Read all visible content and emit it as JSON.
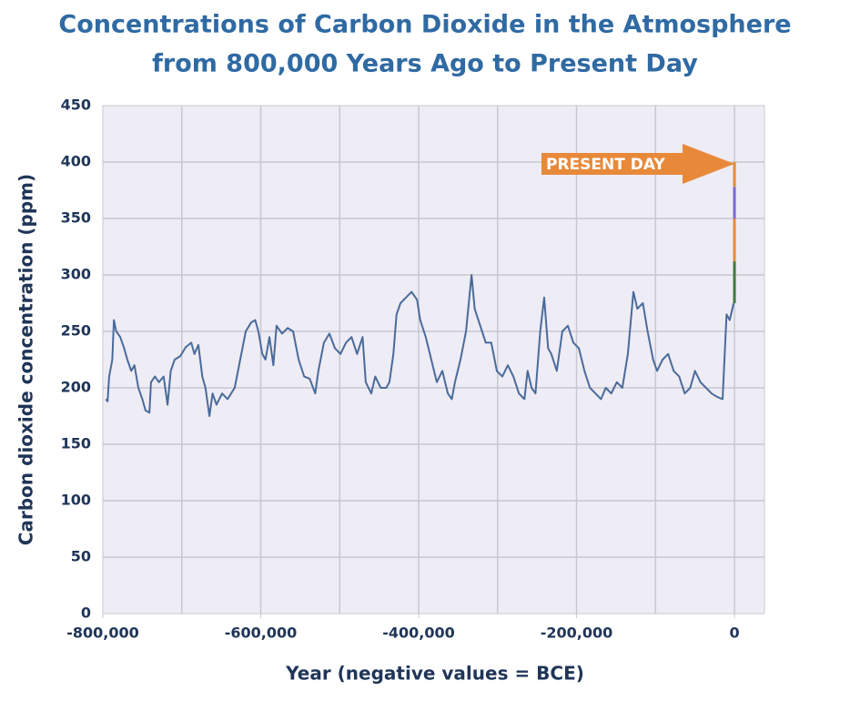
{
  "chart_data": {
    "type": "line",
    "title": [
      "Concentrations of Carbon Dioxide in the Atmosphere",
      "from 800,000 Years Ago to Present Day"
    ],
    "xlabel": "Year (negative values = BCE)",
    "ylabel": "Carbon dioxide concentration (ppm)",
    "annotation": "PRESENT DAY",
    "xlim": [
      -800000,
      38000
    ],
    "ylim": [
      0,
      450
    ],
    "xticks": [
      {
        "value": -800000,
        "label": "-800,000"
      },
      {
        "value": -600000,
        "label": "-600,000"
      },
      {
        "value": -400000,
        "label": "-400,000"
      },
      {
        "value": -200000,
        "label": "-200,000"
      },
      0
    ],
    "xgrid": [
      -700000,
      -600000,
      -500000,
      -400000,
      -300000,
      -200000,
      -100000,
      0
    ],
    "yticks": [
      0,
      50,
      100,
      150,
      200,
      250,
      300,
      350,
      400,
      450
    ],
    "grid": true,
    "series": [
      {
        "color": "#4a6b9a",
        "x": [
          -796000,
          -794000,
          -792000,
          -788000,
          -786000,
          -783000,
          -778000,
          -773000,
          -769000,
          -764000,
          -760000,
          -755000,
          -750000,
          -746000,
          -741000,
          -739000,
          -734000,
          -729000,
          -723000,
          -718000,
          -714000,
          -709000,
          -702000,
          -695000,
          -688000,
          -684000,
          -679000,
          -674000,
          -670000,
          -665000,
          -661000,
          -656000,
          -649000,
          -642000,
          -633000,
          -626000,
          -619000,
          -612000,
          -607000,
          -603000,
          -598000,
          -594000,
          -589000,
          -584000,
          -580000,
          -573000,
          -566000,
          -559000,
          -552000,
          -545000,
          -538000,
          -531000,
          -527000,
          -520000,
          -513000,
          -506000,
          -499000,
          -492000,
          -485000,
          -478000,
          -471000,
          -467000,
          -460000,
          -455000,
          -448000,
          -441000,
          -437000,
          -432000,
          -428000,
          -423000,
          -416000,
          -409000,
          -402000,
          -398000,
          -391000,
          -384000,
          -377000,
          -370000,
          -363000,
          -358000,
          -354000,
          -347000,
          -340000,
          -333000,
          -329000,
          -322000,
          -315000,
          -308000,
          -301000,
          -294000,
          -287000,
          -280000,
          -273000,
          -266000,
          -262000,
          -257000,
          -252000,
          -246000,
          -241000,
          -236000,
          -232000,
          -225000,
          -218000,
          -211000,
          -204000,
          -197000,
          -190000,
          -183000,
          -176000,
          -169000,
          -163000,
          -156000,
          -149000,
          -142000,
          -135000,
          -128000,
          -123000,
          -116000,
          -110000,
          -103000,
          -98000,
          -91000,
          -84000,
          -77000,
          -70000,
          -63000,
          -56000,
          -50000,
          -43000,
          -36000,
          -29000,
          -22000,
          -15000,
          -10000,
          -6000,
          -1000
        ],
        "values": [
          190,
          188,
          210,
          225,
          260,
          250,
          245,
          235,
          225,
          215,
          220,
          200,
          190,
          180,
          178,
          205,
          210,
          205,
          210,
          185,
          215,
          225,
          228,
          236,
          240,
          230,
          238,
          210,
          200,
          175,
          195,
          185,
          195,
          190,
          200,
          225,
          250,
          258,
          260,
          250,
          230,
          225,
          245,
          220,
          255,
          248,
          253,
          250,
          225,
          210,
          208,
          195,
          215,
          240,
          248,
          235,
          230,
          240,
          245,
          230,
          245,
          205,
          195,
          210,
          200,
          200,
          205,
          230,
          265,
          275,
          280,
          285,
          278,
          260,
          245,
          225,
          205,
          215,
          195,
          190,
          205,
          225,
          250,
          300,
          270,
          255,
          240,
          240,
          215,
          210,
          220,
          210,
          195,
          190,
          215,
          200,
          195,
          250,
          280,
          235,
          230,
          215,
          250,
          255,
          240,
          235,
          215,
          200,
          195,
          190,
          200,
          195,
          205,
          200,
          230,
          285,
          270,
          275,
          250,
          225,
          215,
          225,
          230,
          215,
          210,
          195,
          200,
          215,
          205,
          200,
          195,
          192,
          190,
          265,
          260,
          275
        ]
      },
      {
        "color": "#3e7a3a",
        "x": [
          0,
          0
        ],
        "values": [
          275,
          312
        ]
      },
      {
        "color": "#e8893a",
        "x": [
          0,
          0
        ],
        "values": [
          312,
          350
        ]
      },
      {
        "color": "#7a6ad0",
        "x": [
          0,
          0
        ],
        "values": [
          350,
          378
        ]
      },
      {
        "color": "#e8893a",
        "x": [
          0,
          0
        ],
        "values": [
          378,
          400
        ]
      }
    ]
  }
}
